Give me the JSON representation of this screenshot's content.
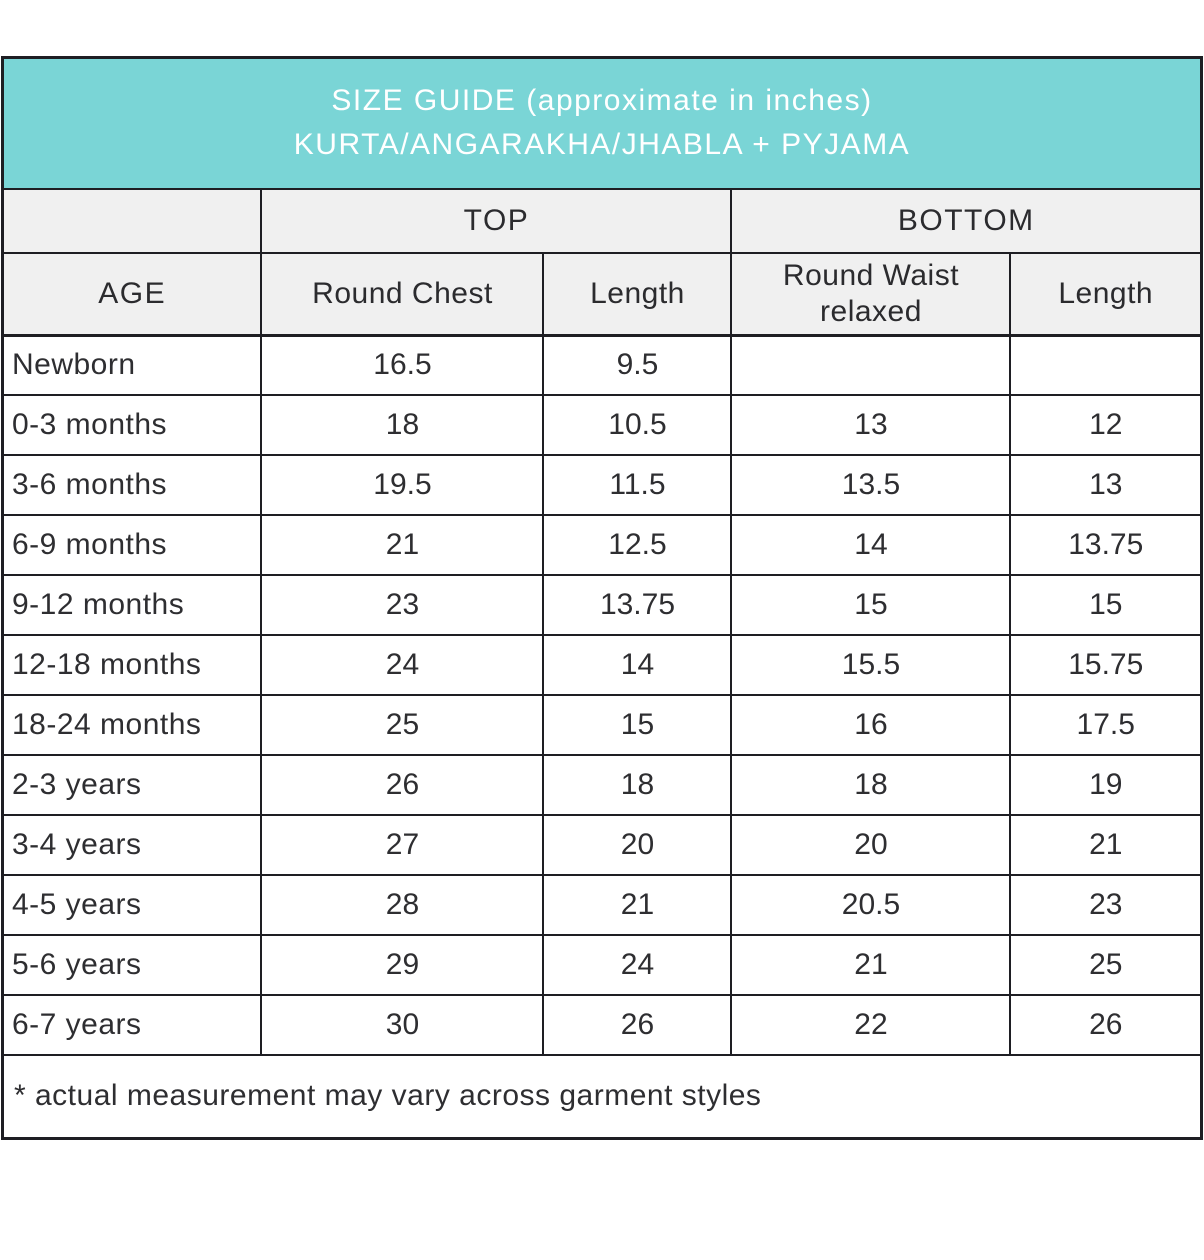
{
  "colors": {
    "header_teal": "#7ad5d6",
    "subheader_gray": "#f0f0f0",
    "border": "#1e1e23",
    "title_text": "#ffffff",
    "body_text": "#2e2e31"
  },
  "chart_data": {
    "type": "table",
    "title_line1": "SIZE GUIDE (approximate in inches)",
    "title_line2": "KURTA/ANGARAKHA/JHABLA + PYJAMA",
    "group_headers": {
      "top": "TOP",
      "bottom": "BOTTOM"
    },
    "columns": {
      "age": "AGE",
      "round_chest": "Round Chest",
      "top_length": "Length",
      "round_waist": "Round Waist relaxed",
      "bottom_length": "Length"
    },
    "rows": [
      [
        "Newborn",
        "16.5",
        "9.5",
        "",
        ""
      ],
      [
        "0-3 months",
        "18",
        "10.5",
        "13",
        "12"
      ],
      [
        "3-6 months",
        "19.5",
        "11.5",
        "13.5",
        "13"
      ],
      [
        "6-9 months",
        "21",
        "12.5",
        "14",
        "13.75"
      ],
      [
        "9-12 months",
        "23",
        "13.75",
        "15",
        "15"
      ],
      [
        "12-18 months",
        "24",
        "14",
        "15.5",
        "15.75"
      ],
      [
        "18-24 months",
        "25",
        "15",
        "16",
        "17.5"
      ],
      [
        "2-3 years",
        "26",
        "18",
        "18",
        "19"
      ],
      [
        "3-4 years",
        "27",
        "20",
        "20",
        "21"
      ],
      [
        "4-5 years",
        "28",
        "21",
        "20.5",
        "23"
      ],
      [
        "5-6 years",
        "29",
        "24",
        "21",
        "25"
      ],
      [
        "6-7 years",
        "30",
        "26",
        "22",
        "26"
      ]
    ],
    "footnote": "* actual measurement may vary across garment styles"
  }
}
